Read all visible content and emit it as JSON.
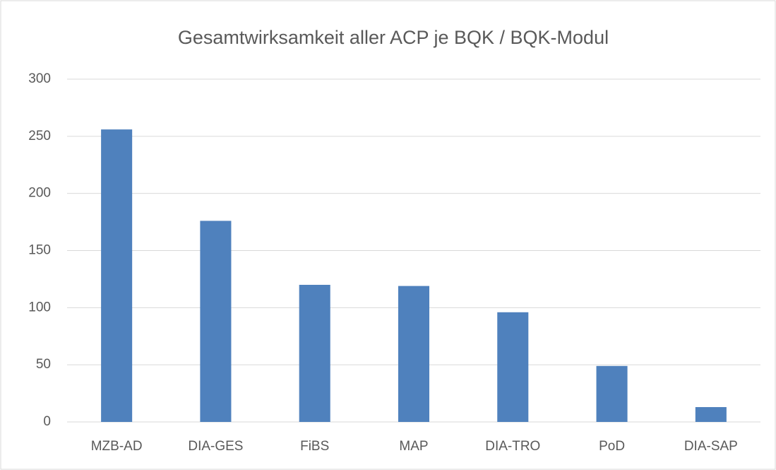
{
  "chart_data": {
    "type": "bar",
    "title": "Gesamtwirksamkeit aller ACP je BQK / BQK-Modul",
    "categories": [
      "MZB-AD",
      "DIA-GES",
      "FiBS",
      "MAP",
      "DIA-TRO",
      "PoD",
      "DIA-SAP"
    ],
    "values": [
      256,
      176,
      120,
      119,
      96,
      49,
      13
    ],
    "color": "#4f81bd",
    "ylim": [
      0,
      300
    ],
    "yticks": [
      0,
      50,
      100,
      150,
      200,
      250,
      300
    ],
    "grid": true
  }
}
